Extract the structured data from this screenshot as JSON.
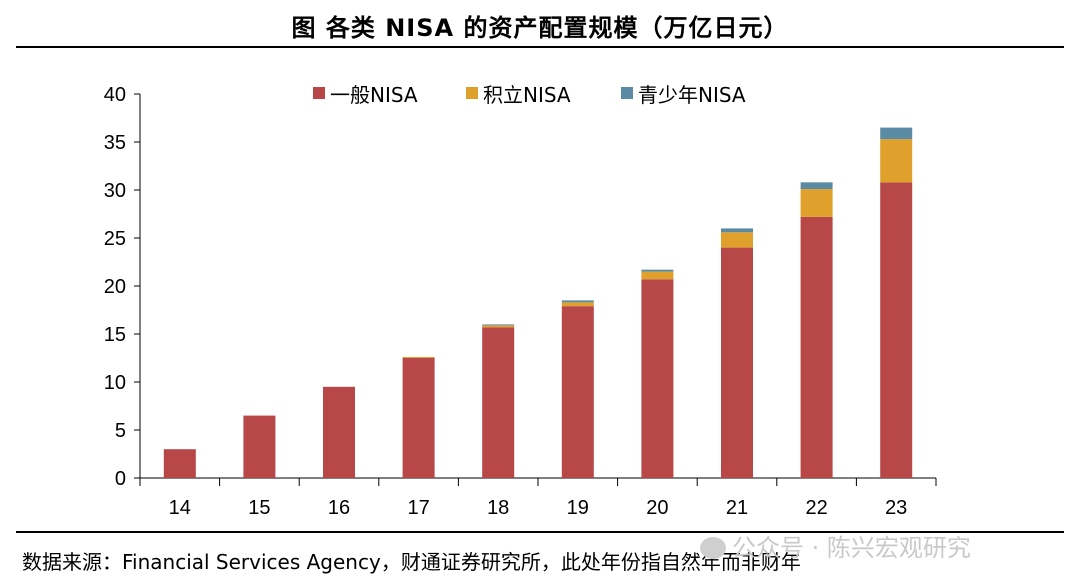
{
  "title": "图 各类 NISA 的资产配置规模（万亿日元）",
  "source": "数据来源：Financial Services Agency，财通证券研究所，此处年份指自然年而非财年",
  "watermark": "公众号 · 陈兴宏观研究",
  "chart_data": {
    "type": "bar",
    "stacked": true,
    "categories": [
      "14",
      "15",
      "16",
      "17",
      "18",
      "19",
      "20",
      "21",
      "22",
      "23"
    ],
    "series": [
      {
        "name": "一般NISA",
        "color": "#b84848",
        "values": [
          3.0,
          6.5,
          9.5,
          12.5,
          15.7,
          17.9,
          20.7,
          24.0,
          27.2,
          30.8
        ]
      },
      {
        "name": "积立NISA",
        "color": "#e0a12c",
        "values": [
          0.0,
          0.0,
          0.0,
          0.1,
          0.2,
          0.4,
          0.8,
          1.6,
          2.9,
          4.5
        ]
      },
      {
        "name": "青少年NISA",
        "color": "#5b8ba4",
        "values": [
          0.0,
          0.0,
          0.0,
          0.0,
          0.1,
          0.2,
          0.2,
          0.4,
          0.7,
          1.2
        ]
      }
    ],
    "ylim": [
      0,
      40
    ],
    "yticks": [
      0,
      5,
      10,
      15,
      20,
      25,
      30,
      35,
      40
    ],
    "xlabel": "",
    "ylabel": "",
    "legend_position": "top-center"
  }
}
